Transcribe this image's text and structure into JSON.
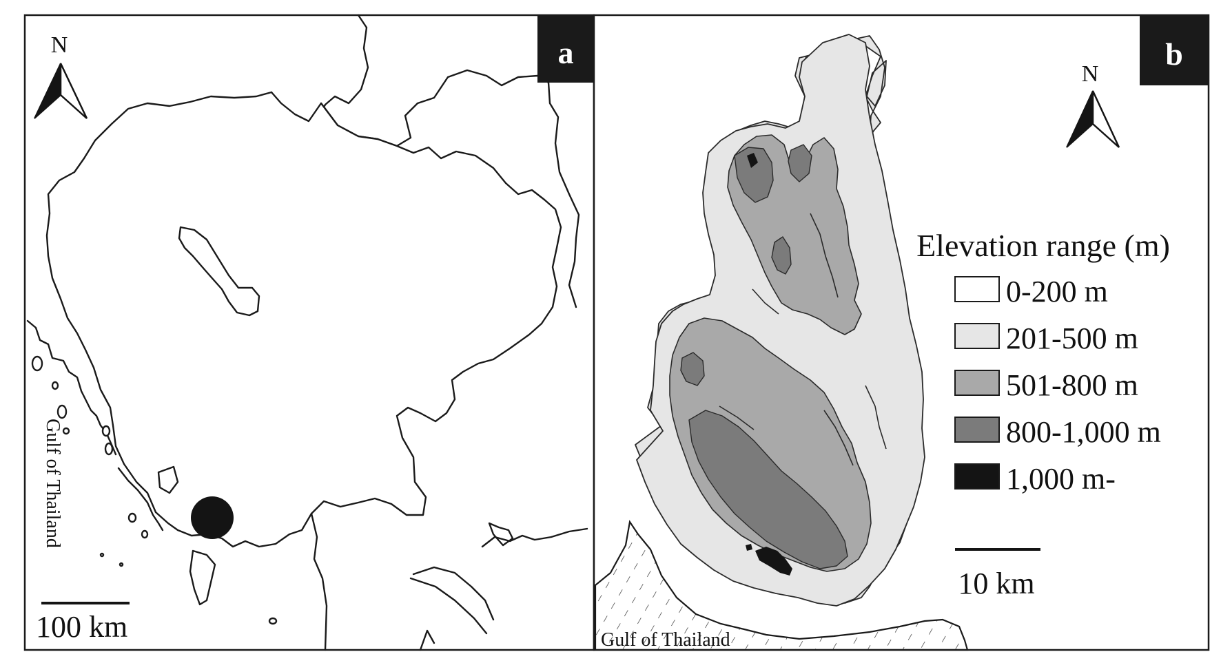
{
  "panel_a": {
    "label": "a",
    "north_label": "N",
    "scale_label": "100 km",
    "gulf_label": "Gulf of Thailand"
  },
  "panel_b": {
    "label": "b",
    "north_label": "N",
    "scale_label": "10 km",
    "gulf_label": "Gulf of Thailand",
    "legend": {
      "title": "Elevation range (m)",
      "items": [
        {
          "label": "0-200 m",
          "color": "#ffffff"
        },
        {
          "label": "201-500 m",
          "color": "#e6e6e6"
        },
        {
          "label": "501-800 m",
          "color": "#a9a9a9"
        },
        {
          "label": "800-1,000 m",
          "color": "#7b7b7b"
        },
        {
          "label": "1,000 m-",
          "color": "#141414"
        }
      ]
    }
  },
  "colors": {
    "label_box": "#1a1a1a",
    "outline": "#1a1a1a"
  }
}
